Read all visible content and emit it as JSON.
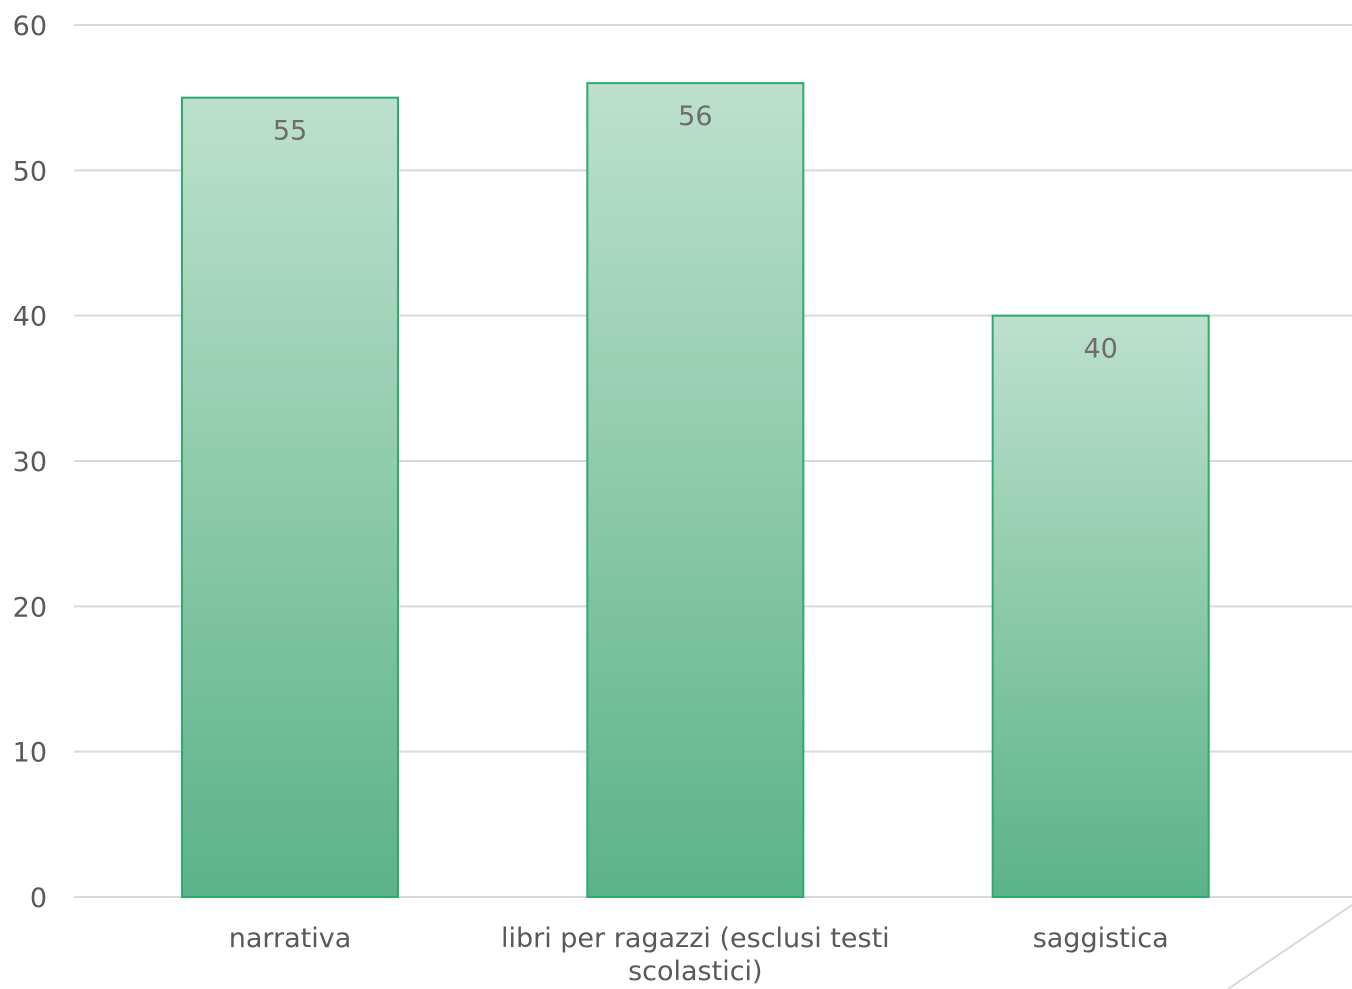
{
  "chart_data": {
    "type": "bar",
    "title": "",
    "xlabel": "",
    "ylabel": "",
    "categories": [
      "narrativa",
      "libri per ragazzi (esclusi testi scolastici)",
      "saggistica"
    ],
    "category_label_lines": [
      [
        "narrativa"
      ],
      [
        "libri per ragazzi (esclusi testi",
        "scolastici)"
      ],
      [
        "saggistica"
      ]
    ],
    "values": [
      55,
      56,
      40
    ],
    "data_labels": [
      "55",
      "56",
      "40"
    ],
    "ylim": [
      0,
      60
    ],
    "y_ticks": [
      0,
      10,
      20,
      30,
      40,
      50,
      60
    ],
    "y_tick_labels": [
      "0",
      "10",
      "20",
      "30",
      "40",
      "50",
      "60"
    ],
    "grid": true,
    "legend": "none",
    "colors": {
      "bar_fill_top": "#bde0cd",
      "bar_fill_bottom": "#5bb389",
      "bar_border": "#2daa6e",
      "grid": "#d9d9d9",
      "text": "#595959"
    }
  }
}
